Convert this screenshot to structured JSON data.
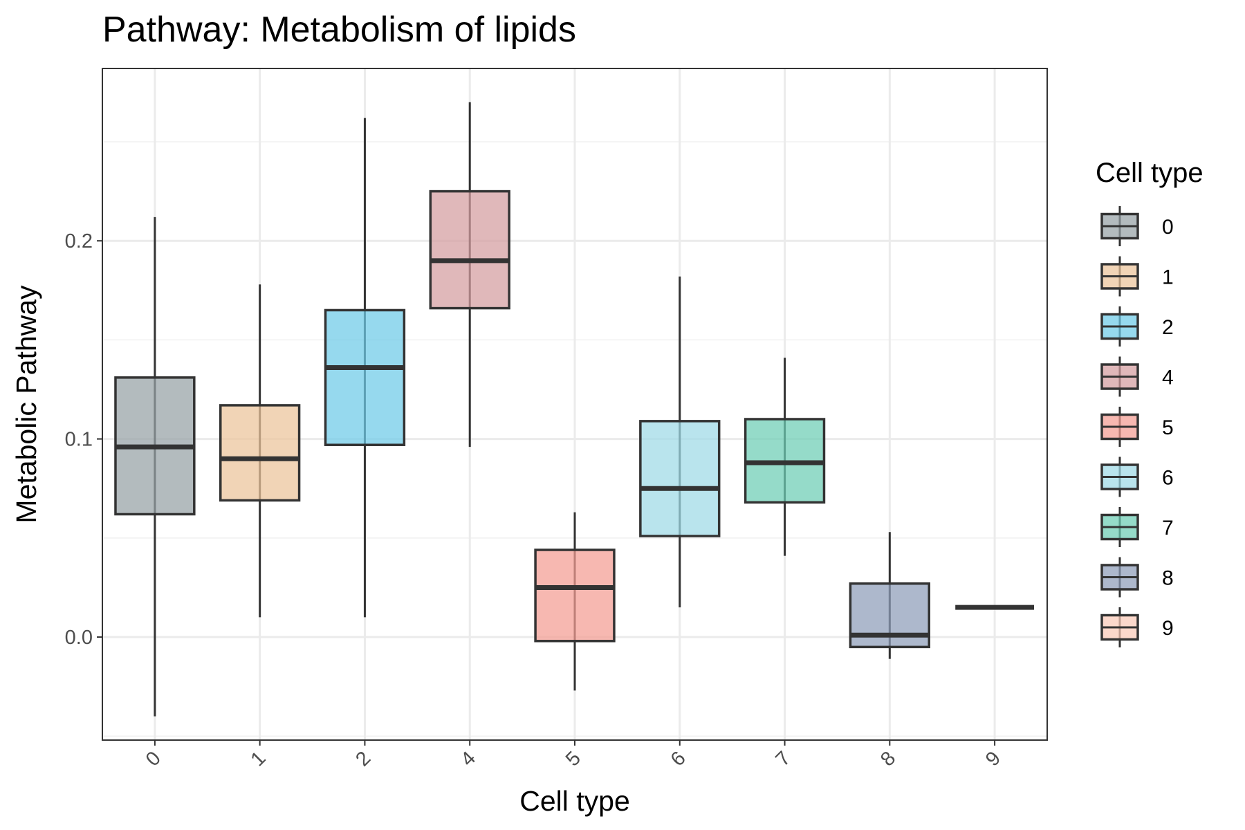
{
  "chart_data": {
    "type": "boxplot",
    "title": "Pathway: Metabolism of lipids",
    "xlabel": "Cell type",
    "ylabel": "Metabolic Pathway",
    "ylim": [
      -0.052,
      0.287
    ],
    "y_ticks": [
      0.0,
      0.1,
      0.2
    ],
    "y_tick_labels": [
      "0.0",
      "0.1",
      "0.2"
    ],
    "grid": true,
    "legend": {
      "title": "Cell type",
      "position": "right"
    },
    "categories": [
      "0",
      "1",
      "2",
      "4",
      "5",
      "6",
      "7",
      "8",
      "9"
    ],
    "boxes": [
      {
        "category": "0",
        "whisker_low": -0.04,
        "q1": 0.062,
        "median": 0.096,
        "q3": 0.131,
        "whisker_high": 0.212,
        "color": "#95A1A5"
      },
      {
        "category": "1",
        "whisker_low": 0.01,
        "q1": 0.069,
        "median": 0.09,
        "q3": 0.117,
        "whisker_high": 0.178,
        "color": "#EBC49A"
      },
      {
        "category": "2",
        "whisker_low": 0.01,
        "q1": 0.097,
        "median": 0.136,
        "q3": 0.165,
        "whisker_high": 0.262,
        "color": "#6DCAE8"
      },
      {
        "category": "4",
        "whisker_low": 0.096,
        "q1": 0.166,
        "median": 0.19,
        "q3": 0.225,
        "whisker_high": 0.27,
        "color": "#D49CA0"
      },
      {
        "category": "5",
        "whisker_low": -0.027,
        "q1": -0.002,
        "median": 0.025,
        "q3": 0.044,
        "whisker_high": 0.063,
        "color": "#F49C93"
      },
      {
        "category": "6",
        "whisker_low": 0.015,
        "q1": 0.051,
        "median": 0.075,
        "q3": 0.109,
        "whisker_high": 0.182,
        "color": "#9ED9E6"
      },
      {
        "category": "7",
        "whisker_low": 0.041,
        "q1": 0.068,
        "median": 0.088,
        "q3": 0.11,
        "whisker_high": 0.141,
        "color": "#6CCDB4"
      },
      {
        "category": "8",
        "whisker_low": -0.011,
        "q1": -0.005,
        "median": 0.001,
        "q3": 0.027,
        "whisker_high": 0.053,
        "color": "#8E9CB8"
      },
      {
        "category": "9",
        "whisker_low": 0.015,
        "q1": 0.015,
        "median": 0.015,
        "q3": 0.015,
        "whisker_high": 0.015,
        "color": "#F9C9B7"
      }
    ]
  }
}
